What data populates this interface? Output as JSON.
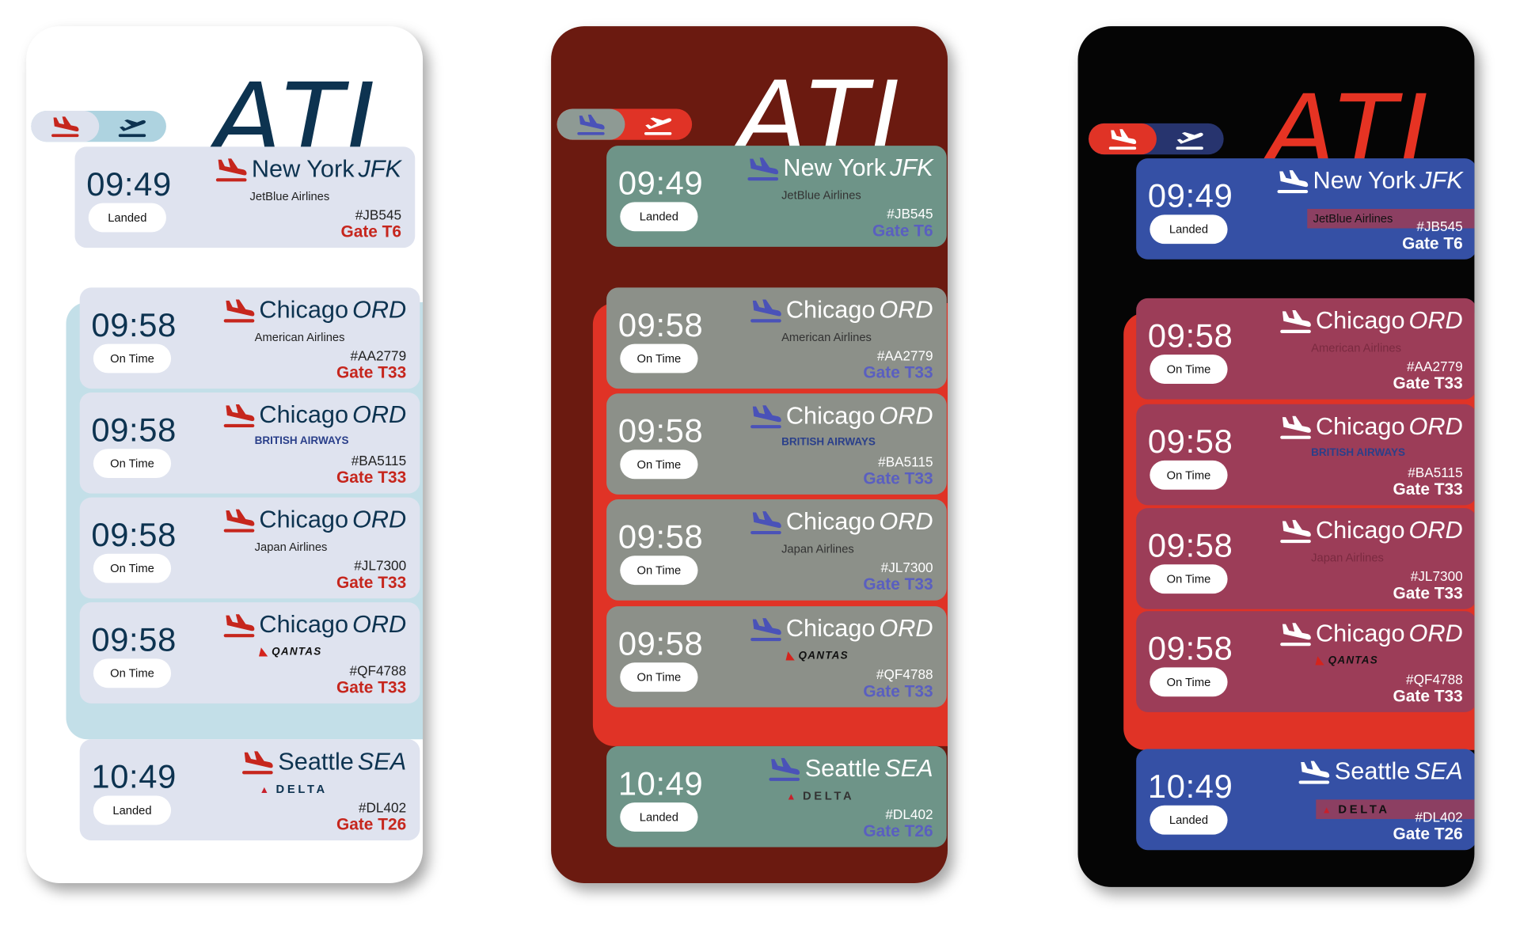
{
  "panels": [
    {
      "theme": "light",
      "title": "ATL",
      "colors": {
        "background": "#ffffff",
        "title": "#0d3350",
        "accent": "#c6261d"
      }
    },
    {
      "theme": "dark-red",
      "title": "ATL",
      "colors": {
        "background": "#6b1a10",
        "title": "#ffffff",
        "accent": "#e03326"
      }
    },
    {
      "theme": "black",
      "title": "ATL",
      "colors": {
        "background": "#050505",
        "title": "#e63323",
        "accent": "#3550a5"
      }
    }
  ],
  "toggle": {
    "options": [
      {
        "icon": "plane-arrival-icon",
        "label": "Arrivals"
      },
      {
        "icon": "plane-departure-icon",
        "label": "Departures"
      }
    ]
  },
  "flights": [
    {
      "time": "09:49",
      "status": "Landed",
      "city": "New York",
      "code": "JFK",
      "airline": "JetBlue Airlines",
      "flight": "#JB545",
      "gate": "Gate T6",
      "logo": "text"
    },
    {
      "time": "09:58",
      "status": "On Time",
      "city": "Chicago",
      "code": "ORD",
      "airline": "American Airlines",
      "flight": "#AA2779",
      "gate": "Gate T33",
      "logo": "aa"
    },
    {
      "time": "09:58",
      "status": "On Time",
      "city": "Chicago",
      "code": "ORD",
      "airline": "BRITISH AIRWAYS",
      "flight": "#BA5115",
      "gate": "Gate T33",
      "logo": "ba"
    },
    {
      "time": "09:58",
      "status": "On Time",
      "city": "Chicago",
      "code": "ORD",
      "airline": "Japan Airlines",
      "flight": "#JL7300",
      "gate": "Gate T33",
      "logo": "text"
    },
    {
      "time": "09:58",
      "status": "On Time",
      "city": "Chicago",
      "code": "ORD",
      "airline": "QANTAS",
      "flight": "#QF4788",
      "gate": "Gate T33",
      "logo": "qf"
    },
    {
      "time": "10:49",
      "status": "Landed",
      "city": "Seattle",
      "code": "SEA",
      "airline": "DELTA",
      "flight": "#DL402",
      "gate": "Gate T26",
      "logo": "dl"
    }
  ]
}
